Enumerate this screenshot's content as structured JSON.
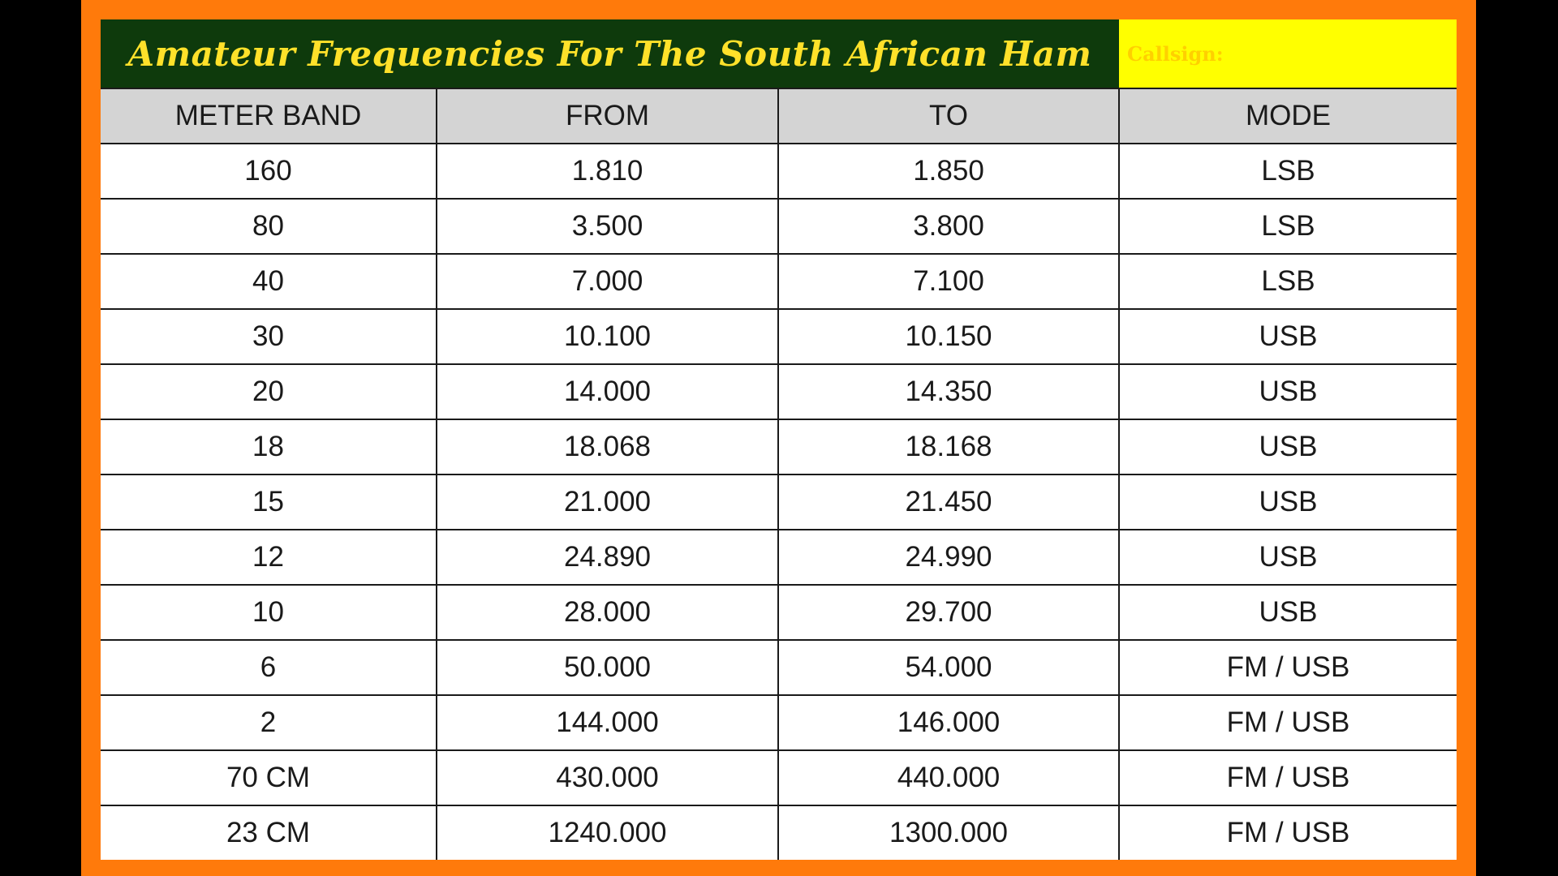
{
  "title": "Amateur Frequencies For The South African Ham",
  "callsign_label": "Callsign:",
  "table": {
    "headers": [
      "METER BAND",
      "FROM",
      "TO",
      "MODE"
    ],
    "rows": [
      [
        "160",
        "1.810",
        "1.850",
        "LSB"
      ],
      [
        "80",
        "3.500",
        "3.800",
        "LSB"
      ],
      [
        "40",
        "7.000",
        "7.100",
        "LSB"
      ],
      [
        "30",
        "10.100",
        "10.150",
        "USB"
      ],
      [
        "20",
        "14.000",
        "14.350",
        "USB"
      ],
      [
        "18",
        "18.068",
        "18.168",
        "USB"
      ],
      [
        "15",
        "21.000",
        "21.450",
        "USB"
      ],
      [
        "12",
        "24.890",
        "24.990",
        "USB"
      ],
      [
        "10",
        "28.000",
        "29.700",
        "USB"
      ],
      [
        "6",
        "50.000",
        "54.000",
        "FM / USB"
      ],
      [
        "2",
        "144.000",
        "146.000",
        "FM / USB"
      ],
      [
        "70 CM",
        "430.000",
        "440.000",
        "FM / USB"
      ],
      [
        "23 CM",
        "1240.000",
        "1300.000",
        "FM / USB"
      ]
    ]
  },
  "colors": {
    "border": "#ff7a0b",
    "title_bg": "#0e3a0c",
    "title_text": "#ffe12a",
    "callsign_bg": "#ffff00",
    "header_bg": "#d4d4d4"
  }
}
